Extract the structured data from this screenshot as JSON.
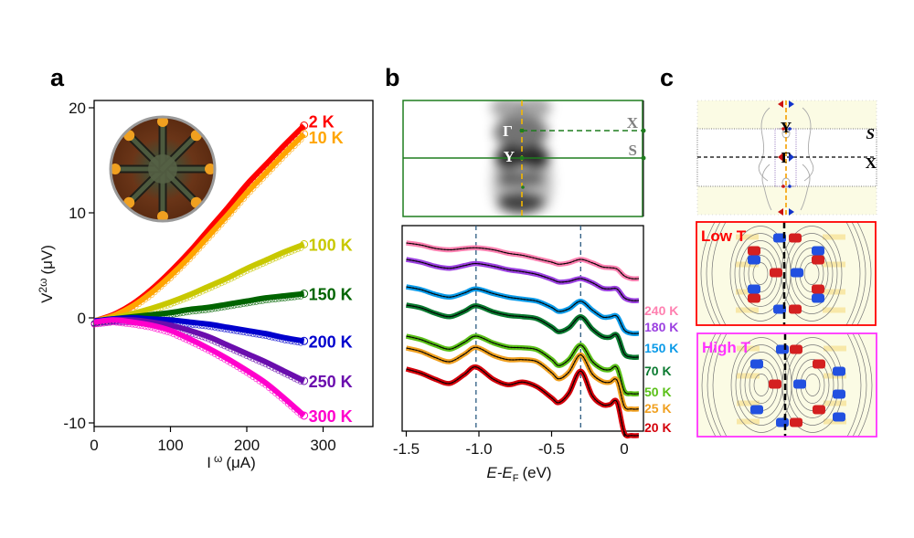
{
  "panels": {
    "a": {
      "letter": "a"
    },
    "b": {
      "letter": "b"
    },
    "c": {
      "letter": "c"
    }
  },
  "chart_data": [
    {
      "id": "panel-a",
      "type": "line",
      "title": "",
      "xlabel": "I ω (μA)",
      "xlabel_main": "I",
      "xlabel_sup": "ω",
      "xlabel_unit": "(μA)",
      "ylabel_main": "V",
      "ylabel_sup": "2ω",
      "ylabel_unit": "(μV)",
      "ylabel": "V2ω (μV)",
      "xlim": [
        0,
        365
      ],
      "ylim": [
        -10,
        20
      ],
      "xticks": [
        0,
        100,
        200,
        300
      ],
      "xtick_labels": [
        "0",
        "100",
        "200",
        "300"
      ],
      "yticks": [
        -10,
        0,
        10,
        20
      ],
      "ytick_labels": [
        "-10",
        "0",
        "10",
        "20"
      ],
      "grid": false,
      "legend": "inline labels at right end of each curve",
      "inset": "optical micrograph of circular multi-electrode device",
      "x": [
        0,
        25,
        50,
        75,
        100,
        125,
        150,
        175,
        200,
        225,
        250,
        275
      ],
      "series": [
        {
          "name": "2 K",
          "color": "#ff0000",
          "values": [
            -0.3,
            0.3,
            1.3,
            2.7,
            4.4,
            6.3,
            8.4,
            10.5,
            12.7,
            14.6,
            16.5,
            18.3
          ]
        },
        {
          "name": "10 K",
          "color": "#ffa500",
          "values": [
            -0.3,
            0.2,
            1.1,
            2.4,
            4.0,
            5.8,
            7.8,
            9.8,
            11.9,
            13.8,
            15.7,
            17.5
          ]
        },
        {
          "name": "100 K",
          "color": "#c8c800",
          "values": [
            -0.3,
            0.0,
            0.4,
            0.9,
            1.5,
            2.2,
            3.0,
            3.8,
            4.7,
            5.5,
            6.3,
            7.0
          ]
        },
        {
          "name": "150 K",
          "color": "#006400",
          "values": [
            -0.3,
            -0.1,
            0.1,
            0.3,
            0.5,
            0.8,
            1.0,
            1.3,
            1.6,
            1.9,
            2.1,
            2.3
          ]
        },
        {
          "name": "200 K",
          "color": "#0000cd",
          "values": [
            -0.3,
            -0.1,
            0.0,
            -0.1,
            -0.2,
            -0.4,
            -0.6,
            -0.9,
            -1.2,
            -1.5,
            -1.9,
            -2.2
          ]
        },
        {
          "name": "250 K",
          "color": "#6a0dad",
          "values": [
            -0.4,
            -0.2,
            -0.2,
            -0.4,
            -0.7,
            -1.2,
            -1.8,
            -2.6,
            -3.4,
            -4.2,
            -5.1,
            -6.0
          ]
        },
        {
          "name": "300 K",
          "color": "#ff00cc",
          "values": [
            -0.4,
            -0.2,
            -0.4,
            -0.7,
            -1.2,
            -2.0,
            -2.9,
            -3.9,
            -5.0,
            -6.2,
            -7.7,
            -9.3
          ]
        }
      ]
    },
    {
      "id": "panel-b-top",
      "type": "heatmap",
      "description": "ARPES constant-energy map (grayscale) with high-symmetry path",
      "points": [
        "Γ",
        "Y",
        "X",
        "S"
      ],
      "line_colors": {
        "path": "#1e7d1e",
        "vertical": "#f5b800"
      }
    },
    {
      "id": "panel-b-bottom",
      "type": "line",
      "title": "",
      "xlabel": "E-EF (eV)",
      "xlabel_main": "E-E",
      "xlabel_sub": "F",
      "xlabel_unit": "(eV)",
      "ylabel": "",
      "xlim": [
        -1.52,
        0.12
      ],
      "xticks": [
        -1.5,
        -1.0,
        -0.5,
        0
      ],
      "xtick_labels": [
        "-1.5",
        "-1.0",
        "-0.5",
        "0"
      ],
      "vertical_reference_lines": [
        -1.02,
        -0.3
      ],
      "grid": false,
      "legend": "right side labels",
      "x": [
        -1.5,
        -1.4,
        -1.3,
        -1.2,
        -1.1,
        -1.02,
        -0.9,
        -0.8,
        -0.7,
        -0.6,
        -0.5,
        -0.45,
        -0.38,
        -0.3,
        -0.22,
        -0.15,
        -0.1,
        -0.05,
        0.0,
        0.05,
        0.1
      ],
      "series": [
        {
          "name": "240 K",
          "color": "#ff80b0",
          "values": [
            0.0,
            -0.3,
            -0.8,
            -1.0,
            -0.8,
            -0.7,
            -1.0,
            -1.5,
            -1.8,
            -2.3,
            -2.8,
            -3.1,
            -2.9,
            -2.4,
            -2.9,
            -3.5,
            -3.6,
            -3.8,
            -4.8,
            -5.2,
            -5.2
          ]
        },
        {
          "name": "180 K",
          "color": "#9b40e0",
          "values": [
            0.0,
            -0.4,
            -1.0,
            -1.3,
            -0.9,
            -0.6,
            -1.0,
            -1.5,
            -1.8,
            -2.2,
            -2.9,
            -3.3,
            -3.2,
            -2.8,
            -3.4,
            -4.2,
            -4.3,
            -4.3,
            -5.6,
            -6.0,
            -6.0
          ]
        },
        {
          "name": "150 K",
          "color": "#0a9ae8",
          "values": [
            0.0,
            -0.4,
            -1.1,
            -1.5,
            -0.9,
            -0.3,
            -1.0,
            -1.5,
            -1.8,
            -2.1,
            -3.0,
            -3.6,
            -3.2,
            -2.1,
            -3.4,
            -4.4,
            -4.4,
            -4.3,
            -6.3,
            -6.8,
            -6.8
          ]
        },
        {
          "name": "70 K",
          "color": "#0a7a30",
          "values": [
            0.0,
            -0.4,
            -1.2,
            -1.7,
            -0.9,
            -0.1,
            -1.0,
            -1.5,
            -1.7,
            -2.0,
            -3.2,
            -3.9,
            -3.3,
            -1.7,
            -3.5,
            -4.6,
            -4.7,
            -4.4,
            -7.1,
            -7.6,
            -7.6
          ]
        },
        {
          "name": "50 K",
          "color": "#5ac018",
          "values": [
            0.0,
            -0.5,
            -1.3,
            -1.9,
            -0.9,
            0.0,
            -1.0,
            -1.6,
            -1.7,
            -2.0,
            -3.4,
            -4.3,
            -3.4,
            -1.3,
            -3.7,
            -4.8,
            -4.9,
            -4.6,
            -8.0,
            -8.4,
            -8.4
          ]
        },
        {
          "name": "25 K",
          "color": "#f0a020",
          "values": [
            0.0,
            -0.5,
            -1.4,
            -2.0,
            -0.9,
            0.1,
            -1.1,
            -1.7,
            -1.7,
            -2.0,
            -3.6,
            -4.5,
            -3.5,
            -1.0,
            -3.8,
            -4.9,
            -5.0,
            -4.7,
            -8.5,
            -8.9,
            -8.9
          ]
        },
        {
          "name": "20 K",
          "color": "#d4000a",
          "values": [
            0.0,
            -0.6,
            -1.5,
            -2.1,
            -0.8,
            0.3,
            -1.5,
            -2.3,
            -1.9,
            -2.6,
            -4.2,
            -4.9,
            -3.5,
            -0.3,
            -3.9,
            -5.2,
            -5.2,
            -4.8,
            -9.3,
            -9.7,
            -9.7
          ]
        }
      ]
    }
  ],
  "panel_c": {
    "top": {
      "labels": [
        "Y",
        "Γ",
        "S",
        "X"
      ],
      "background": "#fbfbe4"
    },
    "low_t": {
      "label": "Low T",
      "border_color": "#ff0000",
      "text_color": "#ff0000"
    },
    "high_t": {
      "label": "High T",
      "border_color": "#ff33ff",
      "text_color": "#ff33ff"
    }
  }
}
